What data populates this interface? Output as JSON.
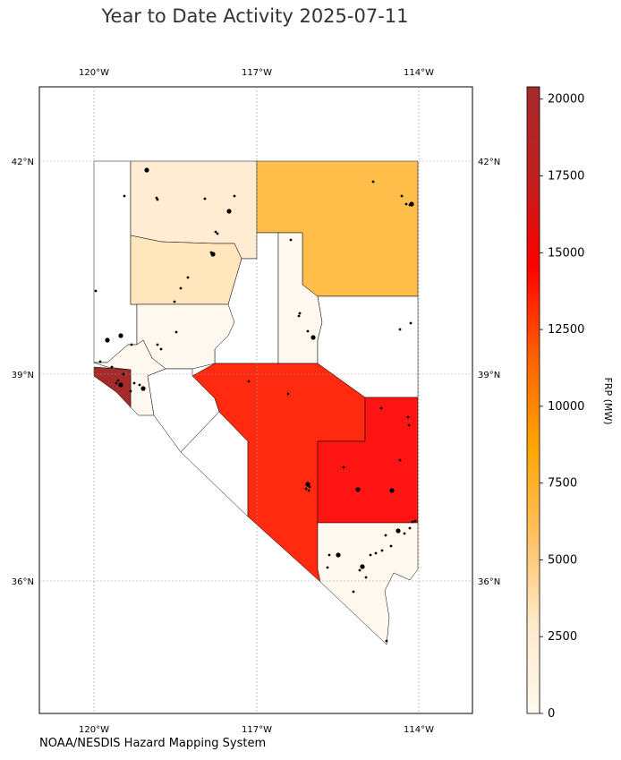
{
  "title": "Year to Date Activity 2025-07-11",
  "credit": "NOAA/NESDIS Hazard Mapping System",
  "map": {
    "region": "Nevada",
    "lon_labels": [
      "120°W",
      "117°W",
      "114°W"
    ],
    "lat_labels": [
      "42°N",
      "39°N",
      "36°N"
    ],
    "gridlines": true
  },
  "colorbar": {
    "label": "FRP (MW)",
    "ticks": [
      "0",
      "2500",
      "5000",
      "7500",
      "10000",
      "12500",
      "15000",
      "17500",
      "20000"
    ],
    "range": [
      0,
      20400
    ],
    "colormap": [
      "#fffaf0",
      "#ffeacc",
      "#ffc060",
      "#ffa500",
      "#ff6000",
      "#ff0000",
      "#c02020",
      "#a52a2a"
    ]
  },
  "colors": {
    "county_douglas_carson": "#a52a2a",
    "county_nye": "#ff2a10",
    "county_lincoln": "#ff1414",
    "county_elko": "#ffbe4a",
    "county_humboldt": "#ffecd2",
    "county_pershing": "#ffe6bd",
    "county_low": "#fff8ee",
    "county_none": "#ffffff",
    "fire_points": "#000000"
  }
}
